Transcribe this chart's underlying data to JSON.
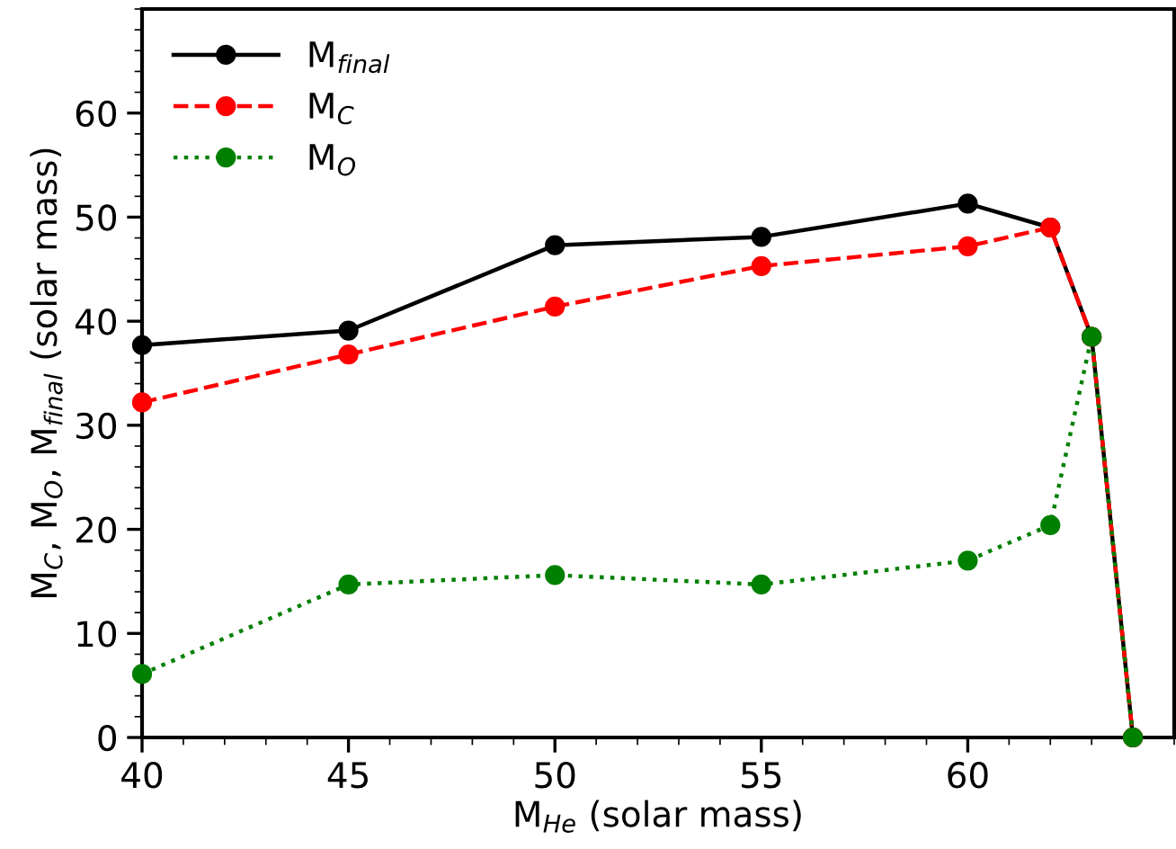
{
  "chart_data": {
    "type": "line",
    "xlabel": "M$_{He}$ (solar mass)",
    "ylabel": "M$_{C}$, M$_{O}$, M$_{final}$ (solar mass)",
    "x": [
      40,
      45,
      50,
      55,
      60,
      62,
      63,
      64
    ],
    "series": [
      {
        "name": "M$_{final}$",
        "color": "#000000",
        "line_style": "solid",
        "values": [
          37.7,
          39.1,
          47.3,
          48.1,
          51.3,
          49.0,
          38.5,
          0
        ]
      },
      {
        "name": "M$_{C}$",
        "color": "#ff0000",
        "line_style": "dashed",
        "values": [
          32.2,
          36.8,
          41.4,
          45.3,
          47.2,
          49.0,
          38.5,
          0
        ]
      },
      {
        "name": "M$_{O}$",
        "color": "#008000",
        "line_style": "dotted",
        "values": [
          6.1,
          14.7,
          15.6,
          14.7,
          17.0,
          20.4,
          38.5,
          0
        ]
      }
    ],
    "xlim": [
      40,
      65
    ],
    "xticks": [
      40,
      45,
      50,
      55,
      60
    ],
    "ylim": [
      0,
      70
    ],
    "yticks": [
      0,
      10,
      20,
      30,
      40,
      50,
      60
    ],
    "marker": "circle",
    "grid": false,
    "legend": "top left"
  }
}
